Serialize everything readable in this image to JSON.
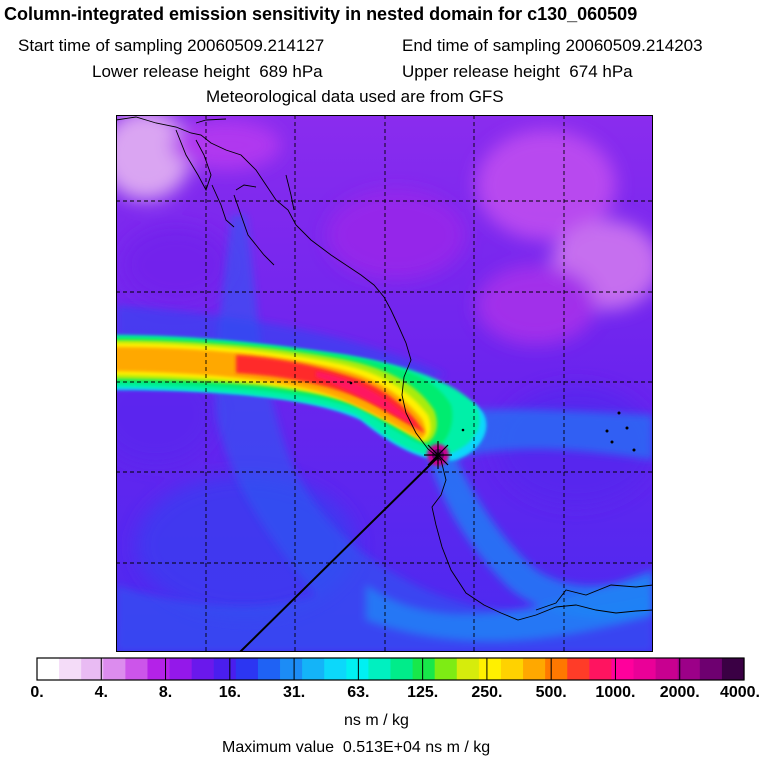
{
  "chart_data": {
    "type": "heatmap",
    "title": "Column-integrated emission sensitivity in nested domain for c130_060509",
    "start_label": "Start time of sampling",
    "start_value": "20060509.214127",
    "end_label": "End time of sampling",
    "end_value": "20060509.214203",
    "lower_label": "Lower release height",
    "lower_value": "689",
    "upper_label": "Upper release height",
    "upper_value": "674",
    "height_unit": "hPa",
    "met_text": "Meteorological data used are from GFS",
    "colorbar": {
      "tick_labels": [
        "0.",
        "4.",
        "8.",
        "16.",
        "31.",
        "63.",
        "125.",
        "250.",
        "500.",
        "1000.",
        "2000.",
        "4000."
      ],
      "colors": [
        "#ffffff",
        "#f4dcf8",
        "#e9bbf3",
        "#dc8cee",
        "#cc55ea",
        "#b422e8",
        "#9418ea",
        "#6a18ec",
        "#4a1eee",
        "#2c36f2",
        "#1f62f4",
        "#1c8cf6",
        "#14b4f8",
        "#0cd8fb",
        "#00f0f2",
        "#00f0c0",
        "#00ec8a",
        "#18e84a",
        "#7eec14",
        "#d6ec0c",
        "#fff000",
        "#ffd200",
        "#ffa800",
        "#ff7800",
        "#ff3c28",
        "#ff1460",
        "#ff009c",
        "#ea0098",
        "#c80090",
        "#9c0088",
        "#6e0070",
        "#3a0044"
      ],
      "units": "ns m / kg"
    },
    "max_label": "Maximum value",
    "max_value": "0.513E+04",
    "max_units": "ns m / kg",
    "grid": true
  },
  "colors": {
    "background": "#7a2ff0",
    "blue_band": "#2a72f2",
    "plume_core": "#ff1a30"
  }
}
